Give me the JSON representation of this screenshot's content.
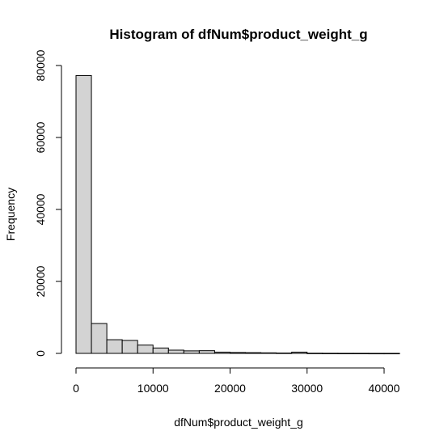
{
  "chart_data": {
    "type": "bar",
    "subtype": "histogram",
    "title": "Histogram of dfNum$product_weight_g",
    "xlabel": "dfNum$product_weight_g",
    "ylabel": "Frequency",
    "bin_width": 2000,
    "bins": [
      {
        "x0": 0,
        "x1": 2000,
        "count": 77200
      },
      {
        "x0": 2000,
        "x1": 4000,
        "count": 8300
      },
      {
        "x0": 4000,
        "x1": 6000,
        "count": 3800
      },
      {
        "x0": 6000,
        "x1": 8000,
        "count": 3600
      },
      {
        "x0": 8000,
        "x1": 10000,
        "count": 2300
      },
      {
        "x0": 10000,
        "x1": 12000,
        "count": 1500
      },
      {
        "x0": 12000,
        "x1": 14000,
        "count": 900
      },
      {
        "x0": 14000,
        "x1": 16000,
        "count": 700
      },
      {
        "x0": 16000,
        "x1": 18000,
        "count": 750
      },
      {
        "x0": 18000,
        "x1": 20000,
        "count": 350
      },
      {
        "x0": 20000,
        "x1": 22000,
        "count": 250
      },
      {
        "x0": 22000,
        "x1": 24000,
        "count": 200
      },
      {
        "x0": 24000,
        "x1": 26000,
        "count": 150
      },
      {
        "x0": 26000,
        "x1": 28000,
        "count": 100
      },
      {
        "x0": 28000,
        "x1": 30000,
        "count": 350
      },
      {
        "x0": 30000,
        "x1": 32000,
        "count": 50
      },
      {
        "x0": 32000,
        "x1": 34000,
        "count": 30
      },
      {
        "x0": 34000,
        "x1": 36000,
        "count": 20
      },
      {
        "x0": 36000,
        "x1": 38000,
        "count": 20
      },
      {
        "x0": 38000,
        "x1": 40000,
        "count": 10
      },
      {
        "x0": 40000,
        "x1": 42000,
        "count": 10
      }
    ],
    "xlim": [
      0,
      42000
    ],
    "ylim": [
      0,
      80000
    ],
    "x_ticks": [
      0,
      10000,
      20000,
      30000,
      40000
    ],
    "x_tick_labels": [
      "0",
      "10000",
      "20000",
      "30000",
      "40000"
    ],
    "y_ticks": [
      0,
      20000,
      40000,
      60000,
      80000
    ],
    "y_tick_labels": [
      "0",
      "20000",
      "40000",
      "60000",
      "80000"
    ],
    "grid": false,
    "legend": "none",
    "colors": {
      "bar_fill": "#d3d3d3",
      "bar_stroke": "#000000",
      "axis": "#000000"
    }
  }
}
